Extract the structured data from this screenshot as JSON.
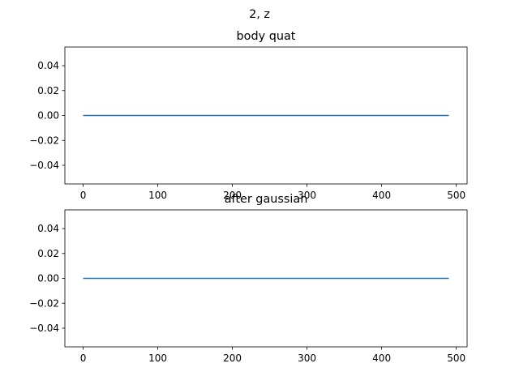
{
  "figure": {
    "suptitle": "2, z"
  },
  "colors": {
    "line": "#1f77b4",
    "axes": "#000000",
    "background": "#ffffff"
  },
  "chart_data": [
    {
      "type": "line",
      "title": "body quat",
      "xlabel": "",
      "ylabel": "",
      "xlim": [
        -24.5,
        514.5
      ],
      "ylim": [
        -0.055,
        0.055
      ],
      "xticks": [
        0,
        100,
        200,
        300,
        400,
        500
      ],
      "yticks": [
        -0.04,
        -0.02,
        0.0,
        0.02,
        0.04
      ],
      "xtick_labels": [
        "0",
        "100",
        "200",
        "300",
        "400",
        "500"
      ],
      "ytick_labels": [
        "−0.04",
        "−0.02",
        "0.00",
        "0.02",
        "0.04"
      ],
      "grid": false,
      "series": [
        {
          "x": [
            0,
            490
          ],
          "values": [
            0,
            0
          ]
        }
      ]
    },
    {
      "type": "line",
      "title": "after gaussian",
      "xlabel": "",
      "ylabel": "",
      "xlim": [
        -24.5,
        514.5
      ],
      "ylim": [
        -0.055,
        0.055
      ],
      "xticks": [
        0,
        100,
        200,
        300,
        400,
        500
      ],
      "yticks": [
        -0.04,
        -0.02,
        0.0,
        0.02,
        0.04
      ],
      "xtick_labels": [
        "0",
        "100",
        "200",
        "300",
        "400",
        "500"
      ],
      "ytick_labels": [
        "−0.04",
        "−0.02",
        "0.00",
        "0.02",
        "0.04"
      ],
      "grid": false,
      "series": [
        {
          "x": [
            0,
            490
          ],
          "values": [
            0,
            0
          ]
        }
      ]
    }
  ]
}
